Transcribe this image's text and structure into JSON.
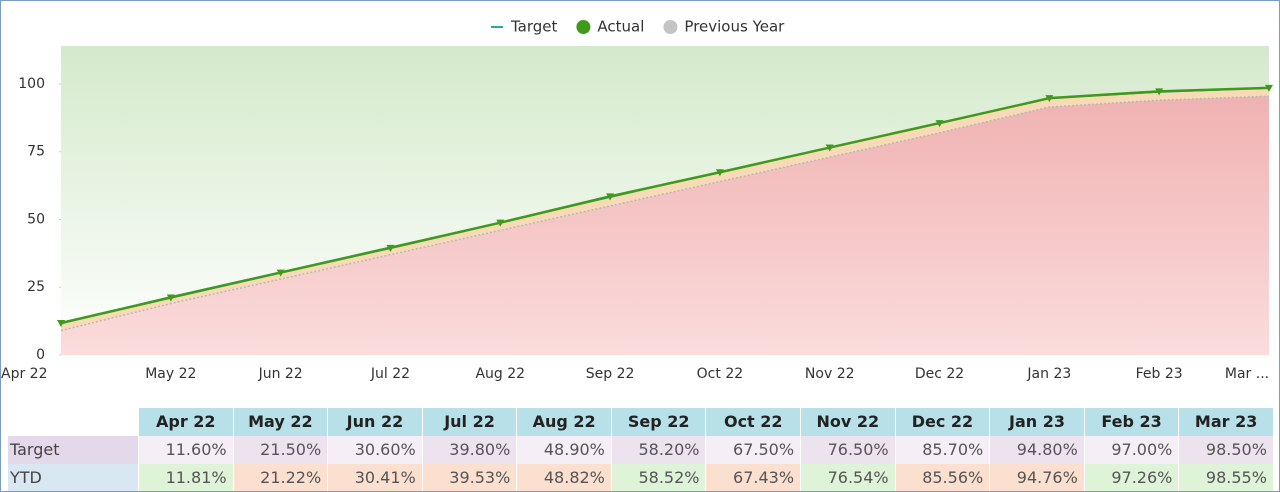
{
  "chart_data": {
    "type": "area",
    "categories": [
      "Apr 22",
      "May 22",
      "Jun 22",
      "Jul 22",
      "Aug 22",
      "Sep 22",
      "Oct 22",
      "Nov 22",
      "Dec 22",
      "Jan 23",
      "Feb 23",
      "Mar 23"
    ],
    "x_labels": [
      "Apr 22",
      "May 22",
      "Jun 22",
      "Jul 22",
      "Aug 22",
      "Sep 22",
      "Oct 22",
      "Nov 22",
      "Dec 22",
      "Jan 23",
      "Feb 23",
      "Mar ..."
    ],
    "ylim": [
      0,
      114
    ],
    "yticks": [
      0,
      25,
      50,
      75,
      100
    ],
    "series": [
      {
        "name": "Target",
        "color": "#2aa89a",
        "values": [
          11.6,
          21.5,
          30.6,
          39.8,
          48.9,
          58.2,
          67.5,
          76.5,
          85.7,
          94.8,
          97.0,
          98.5
        ],
        "value_labels": [
          "11.60%",
          "21.50%",
          "30.60%",
          "39.80%",
          "48.90%",
          "58.20%",
          "67.50%",
          "76.50%",
          "85.70%",
          "94.80%",
          "97.00%",
          "98.50%"
        ]
      },
      {
        "name": "Actual",
        "table_label": "YTD",
        "color": "#3f9a1c",
        "values": [
          11.81,
          21.22,
          30.41,
          39.53,
          48.82,
          58.52,
          67.43,
          76.54,
          85.56,
          94.76,
          97.26,
          98.55
        ],
        "value_labels": [
          "11.81%",
          "21.22%",
          "30.41%",
          "39.53%",
          "48.82%",
          "58.52%",
          "67.43%",
          "76.54%",
          "85.56%",
          "94.76%",
          "97.26%",
          "98.55%"
        ]
      },
      {
        "name": "Previous Year",
        "color": "#b8b8b8",
        "values": [
          9,
          19,
          28,
          37,
          46,
          55,
          64,
          73,
          82,
          91.5,
          94,
          95.5
        ]
      }
    ]
  }
}
